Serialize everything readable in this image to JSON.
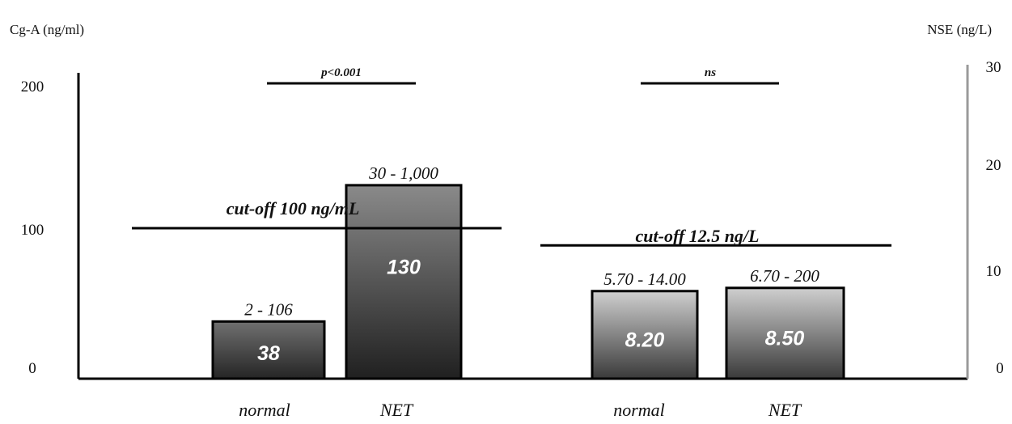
{
  "chart_data": {
    "type": "bar",
    "left_axis": {
      "title": "Cg-A (ng/ml)",
      "tick_labels": [
        "0",
        "100",
        "200"
      ],
      "scale": "custom",
      "range": [
        0,
        200
      ]
    },
    "right_axis": {
      "title": "NSE (ng/L)",
      "tick_labels": [
        "0",
        "10",
        "20",
        "30"
      ],
      "range": [
        0,
        30
      ]
    },
    "groups": [
      {
        "name": "CgA",
        "axis": "left",
        "significance": "p<0.001",
        "cutoff_label": "cut-off 100 ng/mL",
        "cutoff_value": 100,
        "bars": [
          {
            "category": "normal",
            "value": 38,
            "value_label": "38",
            "range_label": "2 - 106"
          },
          {
            "category": "NET",
            "value": 130,
            "value_label": "130",
            "range_label": "30 - 1,000"
          }
        ]
      },
      {
        "name": "NSE",
        "axis": "right",
        "significance": "ns",
        "cutoff_label": "cut-off 12.5 ng/L",
        "cutoff_value": 12.5,
        "bars": [
          {
            "category": "normal",
            "value": 8.2,
            "value_label": "8.20",
            "range_label": "5.70 - 14.00"
          },
          {
            "category": "NET",
            "value": 8.5,
            "value_label": "8.50",
            "range_label": "6.70 - 200"
          }
        ]
      }
    ],
    "colors": {
      "normal_bar_top": "#707070",
      "normal_bar_bottom": "#252525",
      "net_bar_top": "#8a8a8a",
      "net_bar_bottom": "#202020",
      "nse_bar_top": "#cfcfcf",
      "nse_bar_bottom": "#3a3a3a",
      "axis": "#000000"
    }
  }
}
